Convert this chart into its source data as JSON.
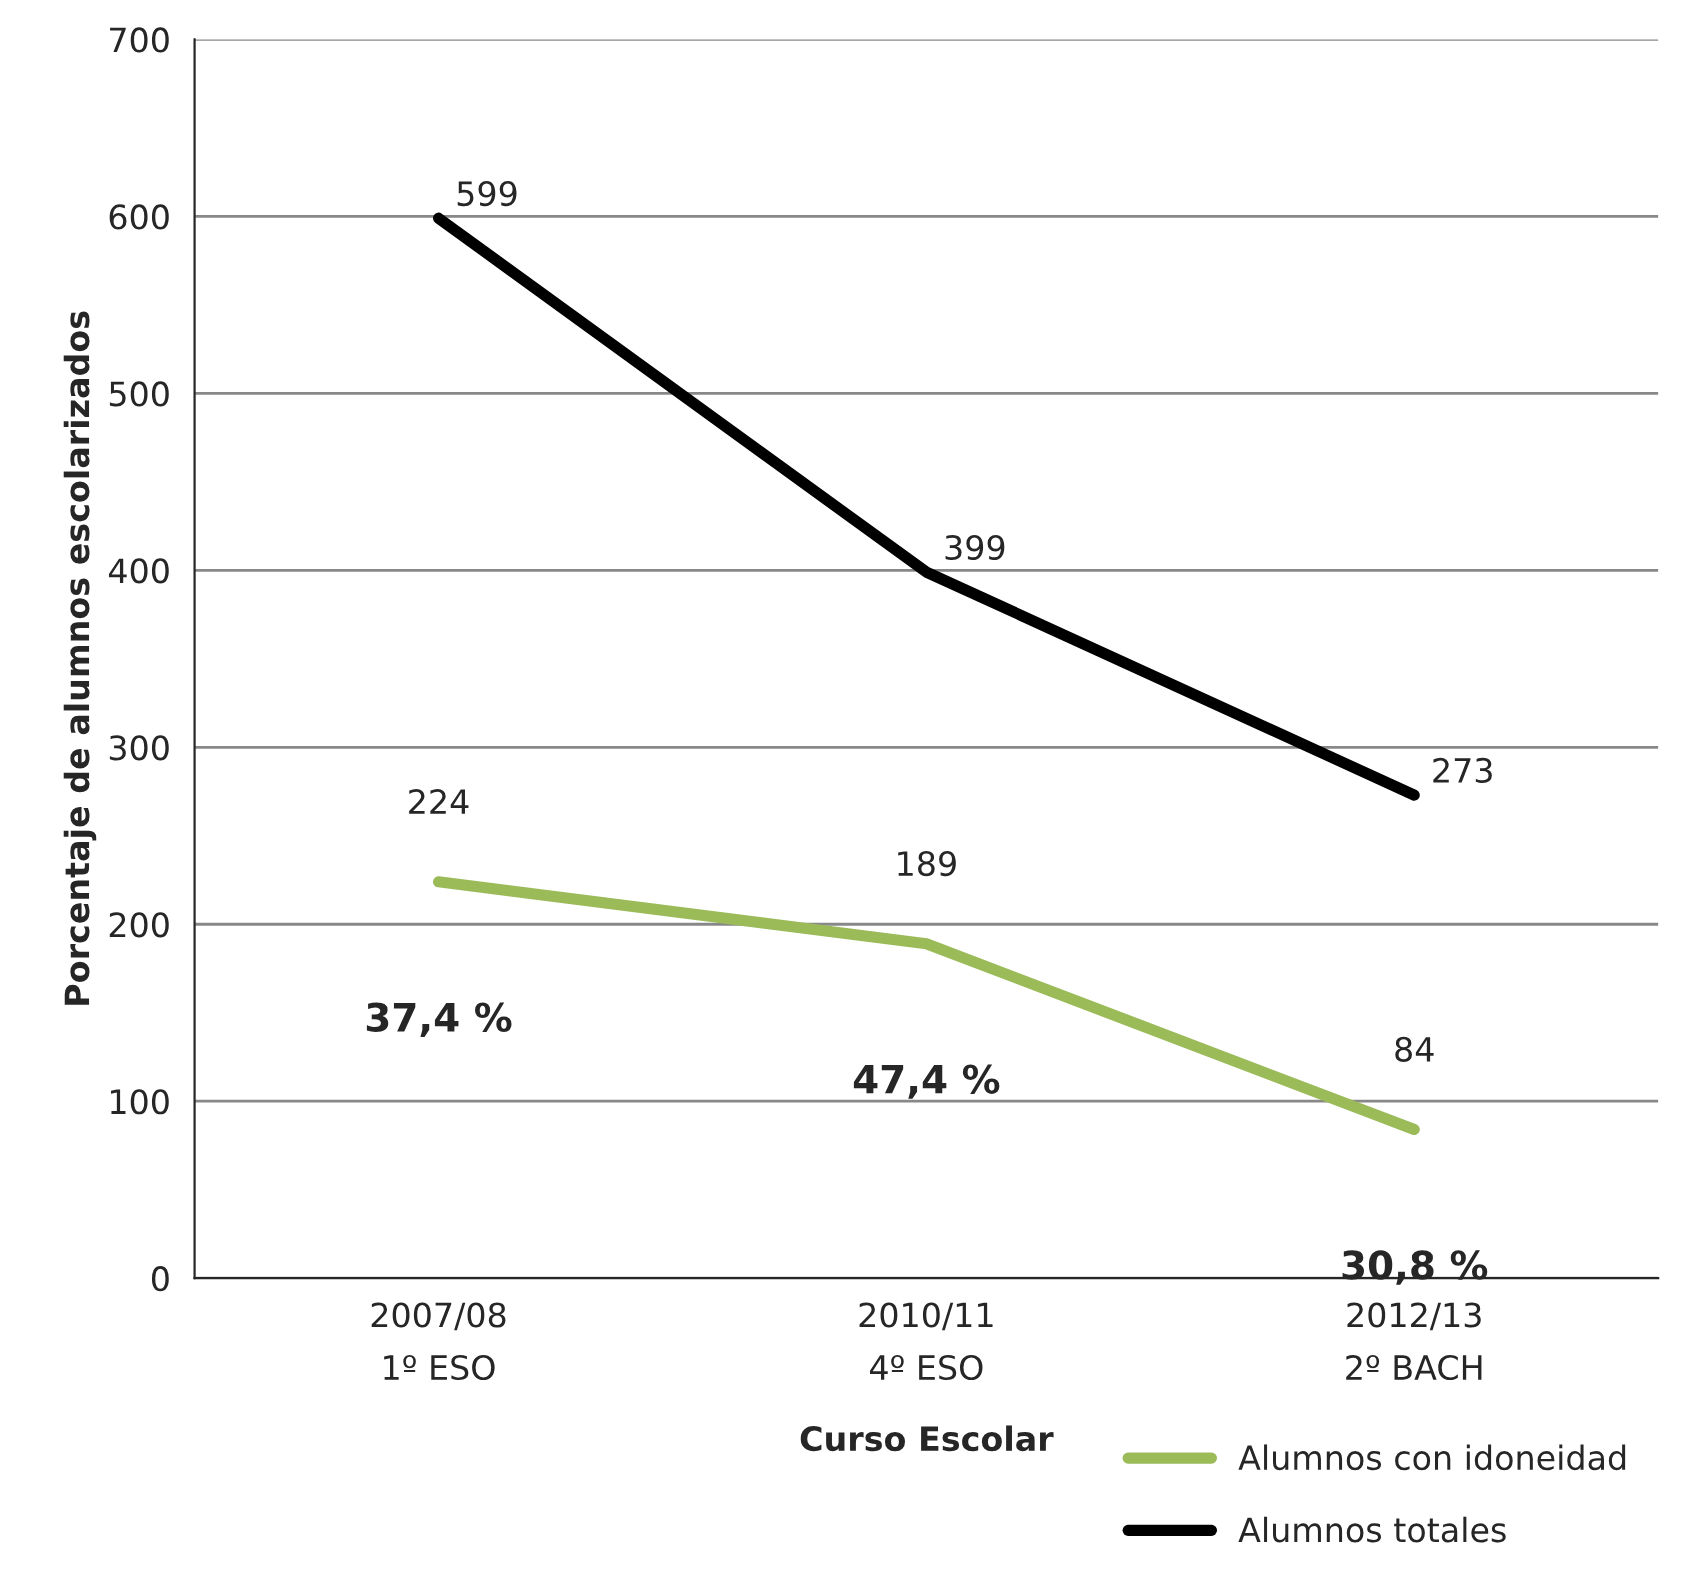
{
  "chart_data": {
    "type": "line",
    "xlabel": "Curso Escolar",
    "ylabel": "Porcentaje de alumnos escolarizados",
    "categories": [
      "2007/08\n1º ESO",
      "2010/11\n4º ESO",
      "2012/13\n2º BACH"
    ],
    "series": [
      {
        "name": "Alumnos con idoneidad",
        "color": "#9bbb59",
        "values": [
          224,
          189,
          84
        ]
      },
      {
        "name": "Alumnos totales",
        "color": "#000000",
        "values": [
          599,
          399,
          273
        ]
      }
    ],
    "ylim": [
      0,
      700
    ],
    "yticks": [
      0,
      100,
      200,
      300,
      400,
      500,
      600,
      700
    ],
    "grid": "y",
    "legend": "bottom right",
    "data_labels": true,
    "marker": "none",
    "line_style": "solid",
    "annotations": [
      "37,4 %",
      "47,4 %",
      "30,8 %"
    ]
  }
}
